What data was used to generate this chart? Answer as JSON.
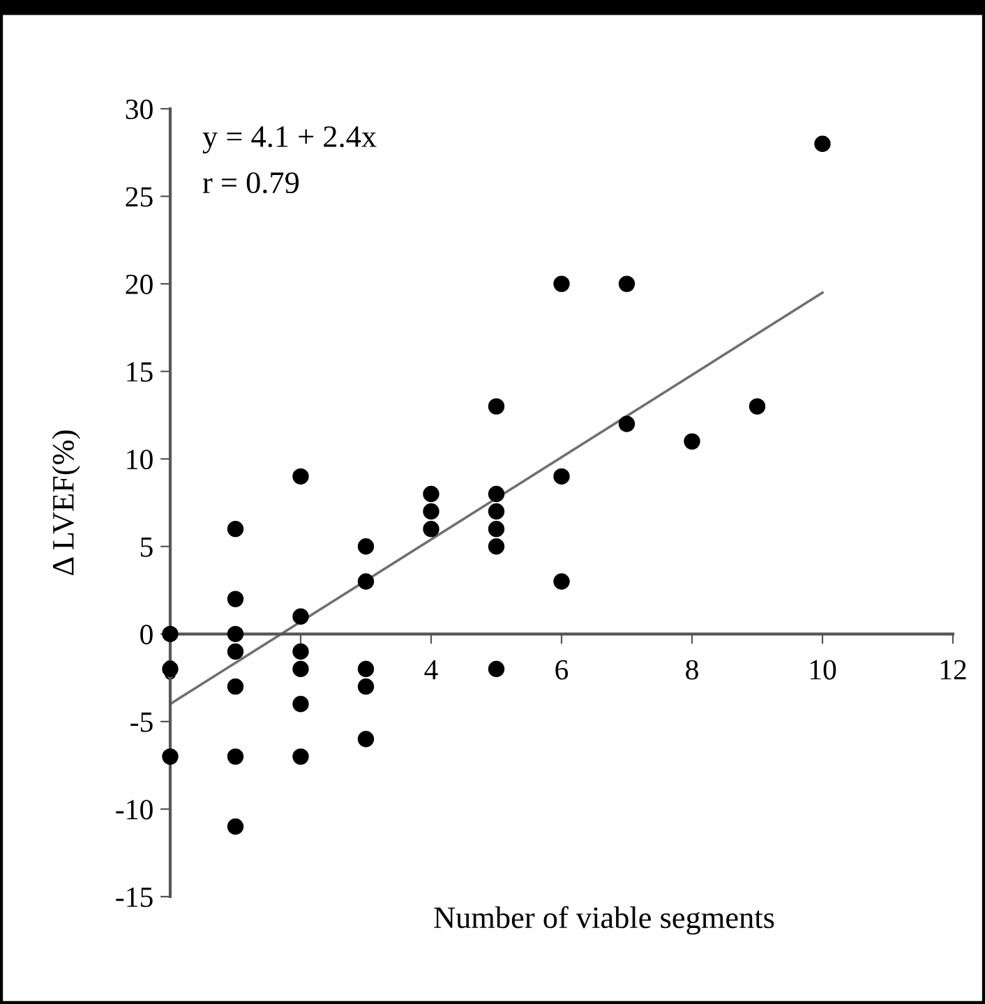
{
  "chart_data": {
    "type": "line",
    "xlabel": "Number of viable segments",
    "ylabel": "Δ LVEF(%)",
    "annotations": [
      "y = 4.1 + 2.4x",
      "r = 0.79"
    ],
    "xlim": [
      0,
      12
    ],
    "ylim": [
      -15,
      30
    ],
    "xticks": [
      0,
      {
        "value": 2,
        "label": null
      },
      4,
      6,
      8,
      10,
      12
    ],
    "yticks": [
      -15,
      -10,
      -5,
      0,
      5,
      10,
      15,
      20,
      25,
      30
    ],
    "grid": false,
    "legend": false,
    "marker": "circle",
    "series": [
      {
        "type": "scatter",
        "color": "#000000",
        "x": [
          0,
          0,
          0,
          1,
          1,
          1,
          1,
          1,
          1,
          1,
          2,
          2,
          2,
          2,
          2,
          2,
          3,
          3,
          3,
          3,
          3,
          4,
          4,
          4,
          5,
          5,
          5,
          5,
          5,
          5,
          6,
          6,
          6,
          7,
          7,
          8,
          9,
          10
        ],
        "values": [
          0,
          -2,
          -7,
          6,
          2,
          0,
          -1,
          -3,
          -7,
          -11,
          9,
          1,
          -1,
          -2,
          -4,
          -7,
          5,
          3,
          -2,
          -3,
          -6,
          8,
          7,
          6,
          13,
          8,
          7,
          6,
          5,
          -2,
          20,
          9,
          3,
          20,
          12,
          11,
          13,
          28
        ]
      },
      {
        "marker": "none",
        "color": "#707070",
        "x": [
          0,
          10
        ],
        "values": [
          -4,
          19.5
        ]
      }
    ]
  }
}
